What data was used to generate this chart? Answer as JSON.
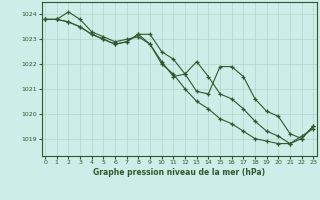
{
  "xlabel": "Graphe pression niveau de la mer (hPa)",
  "background_color": "#cceee8",
  "grid_color": "#aad8cc",
  "line_color": "#2d5a2d",
  "ylim": [
    1018.3,
    1024.5
  ],
  "xlim": [
    -0.3,
    23.3
  ],
  "yticks": [
    1019,
    1020,
    1021,
    1022,
    1023,
    1024
  ],
  "xticks": [
    0,
    1,
    2,
    3,
    4,
    5,
    6,
    7,
    8,
    9,
    10,
    11,
    12,
    13,
    14,
    15,
    16,
    17,
    18,
    19,
    20,
    21,
    22,
    23
  ],
  "series1": [
    1023.8,
    1023.8,
    1024.1,
    1023.8,
    1023.3,
    1023.1,
    1022.9,
    1023.0,
    1023.1,
    1022.8,
    1022.0,
    1021.6,
    1021.0,
    1020.5,
    1020.2,
    1019.8,
    1019.6,
    1019.3,
    1019.0,
    1018.9,
    1018.8,
    1018.8,
    1019.1,
    1019.4
  ],
  "series2": [
    1023.8,
    1023.8,
    1023.7,
    1023.5,
    1023.2,
    1023.0,
    1022.8,
    1022.9,
    1023.2,
    1022.8,
    1022.1,
    1021.5,
    1021.6,
    1022.1,
    1021.5,
    1020.8,
    1020.6,
    1020.2,
    1019.7,
    1019.3,
    1019.1,
    1018.8,
    1019.0,
    1019.5
  ],
  "series3": [
    1023.8,
    1023.8,
    1023.7,
    1023.5,
    1023.2,
    1023.0,
    1022.8,
    1022.9,
    1023.2,
    1023.2,
    1022.5,
    1022.2,
    1021.6,
    1020.9,
    1020.8,
    1021.9,
    1021.9,
    1021.5,
    1020.6,
    1020.1,
    1019.9,
    1019.2,
    1019.0,
    1019.5
  ]
}
